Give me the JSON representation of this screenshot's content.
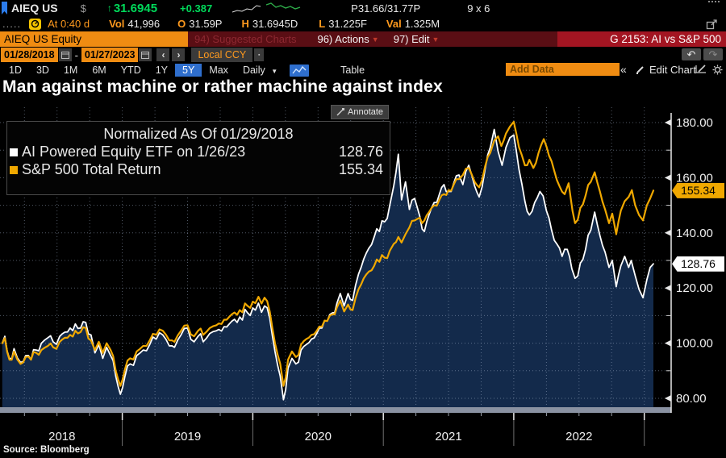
{
  "quote_bar": {
    "ticker": "AIEQ US",
    "currency": "$",
    "direction": "↑",
    "price": "31.6945",
    "change": "+0.387",
    "bid_ask": "P31.66/31.77P",
    "lot_size": "9 x 6"
  },
  "status_bar": {
    "prefix": ".....",
    "session": "At 0:40 d",
    "vol_label": "Vol",
    "vol": "41,996",
    "open_label": "O",
    "open": "31.59P",
    "high_label": "H",
    "high": "31.6945D",
    "low_label": "L",
    "low": "31.225F",
    "value_label": "Val",
    "value": "1.325M"
  },
  "menu_bar": {
    "security": "AIEQ US Equity",
    "suggested": "94) Suggested Charts",
    "actions": "96) Actions",
    "edit": "97) Edit",
    "screen_title": "G 2153: AI vs S&P 500"
  },
  "range_bar": {
    "start_date": "01/28/2018",
    "separator": "-",
    "end_date": "01/27/2023",
    "prev": "‹",
    "next": "›",
    "currency_mode": "Local CCY"
  },
  "toolbar": {
    "tabs": [
      "1D",
      "3D",
      "1M",
      "6M",
      "YTD",
      "1Y",
      "5Y",
      "Max"
    ],
    "selected_tab": "5Y",
    "period": "Daily",
    "period_arrow": "▼",
    "table_label": "Table",
    "add_data": "Add Data",
    "collapse": "«",
    "edit_chart": "Edit Chart"
  },
  "header": {
    "chart_title": "Man against machine or rather machine against index",
    "annotate": "Annotate"
  },
  "legend": {
    "title": "Normalized As Of 01/29/2018",
    "items": [
      {
        "label": "AI Powered Equity ETF on 1/26/23",
        "value": "128.76",
        "color": "#ffffff"
      },
      {
        "label": "S&P 500 Total Return",
        "value": "155.34",
        "color": "#f0a800"
      }
    ]
  },
  "badges": {
    "aieq": "128.76",
    "spx": "155.34"
  },
  "source": "Source:  Bloomberg",
  "chart_data": {
    "type": "line",
    "title": "Man against machine or rather machine against index",
    "normalized_as_of": "01/29/2018",
    "x_range": [
      2018.075,
      2023.07
    ],
    "y_range": [
      80,
      180
    ],
    "grid": {
      "h_step": 10,
      "v_step_years": 0.25
    },
    "y_major_ticks": [
      {
        "v": 80,
        "label": "80.00"
      },
      {
        "v": 100,
        "label": "100.00"
      },
      {
        "v": 120,
        "label": "120.00"
      },
      {
        "v": 140,
        "label": "140.00"
      },
      {
        "v": 160,
        "label": "160.00"
      },
      {
        "v": 180,
        "label": "180.00"
      }
    ],
    "y_minor_ticks": [
      90,
      110,
      130,
      150,
      170
    ],
    "x_year_labels": [
      "2018",
      "2019",
      "2020",
      "2021",
      "2022"
    ],
    "series": [
      {
        "name": "AI Powered Equity ETF",
        "color": "#ffffff",
        "fill": "#132a4b",
        "last": 128.76,
        "points": [
          [
            2018.08,
            100
          ],
          [
            2018.1,
            102.5
          ],
          [
            2018.135,
            94.5
          ],
          [
            2018.17,
            98
          ],
          [
            2018.22,
            93
          ],
          [
            2018.26,
            95.5
          ],
          [
            2018.3,
            94
          ],
          [
            2018.34,
            97.5
          ],
          [
            2018.38,
            100
          ],
          [
            2018.43,
            102
          ],
          [
            2018.47,
            100.5
          ],
          [
            2018.52,
            102.5
          ],
          [
            2018.56,
            104
          ],
          [
            2018.6,
            105.5
          ],
          [
            2018.64,
            107
          ],
          [
            2018.68,
            105.5
          ],
          [
            2018.72,
            107.5
          ],
          [
            2018.76,
            103
          ],
          [
            2018.79,
            96.5
          ],
          [
            2018.82,
            99.5
          ],
          [
            2018.85,
            94.5
          ],
          [
            2018.88,
            98.5
          ],
          [
            2018.91,
            95.5
          ],
          [
            2018.95,
            88
          ],
          [
            2018.985,
            81.5
          ],
          [
            2019.02,
            88
          ],
          [
            2019.06,
            92.5
          ],
          [
            2019.11,
            95.5
          ],
          [
            2019.16,
            97.5
          ],
          [
            2019.21,
            99.5
          ],
          [
            2019.26,
            101.5
          ],
          [
            2019.31,
            103
          ],
          [
            2019.36,
            99
          ],
          [
            2019.4,
            98.5
          ],
          [
            2019.45,
            103
          ],
          [
            2019.5,
            105.5
          ],
          [
            2019.55,
            100.5
          ],
          [
            2019.58,
            102.5
          ],
          [
            2019.62,
            100.5
          ],
          [
            2019.67,
            103.5
          ],
          [
            2019.72,
            104.5
          ],
          [
            2019.78,
            106
          ],
          [
            2019.84,
            108
          ],
          [
            2019.9,
            109.5
          ],
          [
            2019.96,
            111
          ],
          [
            2020.02,
            112
          ],
          [
            2020.09,
            113.5
          ],
          [
            2020.13,
            109
          ],
          [
            2020.17,
            97
          ],
          [
            2020.21,
            88
          ],
          [
            2020.235,
            79.5
          ],
          [
            2020.27,
            91
          ],
          [
            2020.3,
            94.5
          ],
          [
            2020.33,
            92.5
          ],
          [
            2020.37,
            97.5
          ],
          [
            2020.41,
            99.5
          ],
          [
            2020.45,
            101.5
          ],
          [
            2020.49,
            103.5
          ],
          [
            2020.53,
            105.5
          ],
          [
            2020.57,
            108
          ],
          [
            2020.61,
            111
          ],
          [
            2020.645,
            114.5
          ],
          [
            2020.67,
            118
          ],
          [
            2020.7,
            113.5
          ],
          [
            2020.73,
            118
          ],
          [
            2020.765,
            115.5
          ],
          [
            2020.81,
            125
          ],
          [
            2020.85,
            130.5
          ],
          [
            2020.89,
            134.5
          ],
          [
            2020.93,
            138.5
          ],
          [
            2020.97,
            140.5
          ],
          [
            2021.01,
            144
          ],
          [
            2021.05,
            150
          ],
          [
            2021.08,
            157
          ],
          [
            2021.115,
            168.5
          ],
          [
            2021.14,
            152
          ],
          [
            2021.17,
            158.5
          ],
          [
            2021.2,
            148.5
          ],
          [
            2021.24,
            152.5
          ],
          [
            2021.28,
            146
          ],
          [
            2021.315,
            140.5
          ],
          [
            2021.35,
            146.5
          ],
          [
            2021.39,
            151
          ],
          [
            2021.43,
            154
          ],
          [
            2021.465,
            157.5
          ],
          [
            2021.5,
            155
          ],
          [
            2021.54,
            158
          ],
          [
            2021.58,
            161
          ],
          [
            2021.61,
            157.5
          ],
          [
            2021.655,
            164.5
          ],
          [
            2021.7,
            157
          ],
          [
            2021.735,
            153
          ],
          [
            2021.78,
            163
          ],
          [
            2021.82,
            171
          ],
          [
            2021.85,
            177.5
          ],
          [
            2021.88,
            169.5
          ],
          [
            2021.91,
            164.5
          ],
          [
            2021.94,
            171
          ],
          [
            2021.97,
            174.5
          ],
          [
            2022.0,
            175.5
          ],
          [
            2022.04,
            163
          ],
          [
            2022.085,
            151.5
          ],
          [
            2022.12,
            146.5
          ],
          [
            2022.16,
            151
          ],
          [
            2022.2,
            155
          ],
          [
            2022.25,
            148
          ],
          [
            2022.29,
            141
          ],
          [
            2022.33,
            136
          ],
          [
            2022.37,
            131.5
          ],
          [
            2022.41,
            134
          ],
          [
            2022.445,
            127
          ],
          [
            2022.47,
            123.5
          ],
          [
            2022.51,
            129
          ],
          [
            2022.55,
            134
          ],
          [
            2022.59,
            141
          ],
          [
            2022.62,
            147.5
          ],
          [
            2022.66,
            139
          ],
          [
            2022.7,
            133
          ],
          [
            2022.73,
            127.5
          ],
          [
            2022.755,
            130
          ],
          [
            2022.785,
            120.5
          ],
          [
            2022.82,
            128
          ],
          [
            2022.85,
            131.5
          ],
          [
            2022.88,
            127.5
          ],
          [
            2022.9,
            130
          ],
          [
            2022.93,
            124.5
          ],
          [
            2022.96,
            119.5
          ],
          [
            2022.99,
            116.5
          ],
          [
            2023.02,
            123
          ],
          [
            2023.045,
            127.5
          ],
          [
            2023.07,
            128.76
          ]
        ]
      },
      {
        "name": "S&P 500 Total Return",
        "color": "#f0a800",
        "last": 155.34,
        "points": [
          [
            2018.08,
            100
          ],
          [
            2018.1,
            101.8
          ],
          [
            2018.135,
            94
          ],
          [
            2018.17,
            97
          ],
          [
            2018.22,
            92.5
          ],
          [
            2018.26,
            95
          ],
          [
            2018.3,
            94
          ],
          [
            2018.34,
            96.5
          ],
          [
            2018.38,
            97.5
          ],
          [
            2018.43,
            99
          ],
          [
            2018.47,
            98.5
          ],
          [
            2018.52,
            100.5
          ],
          [
            2018.56,
            102
          ],
          [
            2018.6,
            103
          ],
          [
            2018.64,
            104.5
          ],
          [
            2018.68,
            104
          ],
          [
            2018.72,
            105.5
          ],
          [
            2018.76,
            101
          ],
          [
            2018.79,
            97.5
          ],
          [
            2018.82,
            100.5
          ],
          [
            2018.85,
            96.5
          ],
          [
            2018.88,
            100
          ],
          [
            2018.91,
            97.5
          ],
          [
            2018.95,
            90
          ],
          [
            2018.985,
            84.5
          ],
          [
            2019.02,
            90.5
          ],
          [
            2019.06,
            94.5
          ],
          [
            2019.11,
            97
          ],
          [
            2019.16,
            99
          ],
          [
            2019.21,
            101
          ],
          [
            2019.26,
            103
          ],
          [
            2019.31,
            104.5
          ],
          [
            2019.36,
            101
          ],
          [
            2019.4,
            100.5
          ],
          [
            2019.45,
            104.5
          ],
          [
            2019.5,
            106.5
          ],
          [
            2019.55,
            102.5
          ],
          [
            2019.58,
            104.5
          ],
          [
            2019.62,
            103
          ],
          [
            2019.67,
            105.5
          ],
          [
            2019.72,
            106.5
          ],
          [
            2019.78,
            108.5
          ],
          [
            2019.84,
            110.5
          ],
          [
            2019.9,
            112
          ],
          [
            2019.96,
            113.5
          ],
          [
            2020.02,
            114.5
          ],
          [
            2020.09,
            116.5
          ],
          [
            2020.13,
            111.5
          ],
          [
            2020.17,
            100
          ],
          [
            2020.21,
            92.5
          ],
          [
            2020.235,
            84.5
          ],
          [
            2020.27,
            94
          ],
          [
            2020.3,
            97
          ],
          [
            2020.33,
            95
          ],
          [
            2020.37,
            99.5
          ],
          [
            2020.41,
            101.5
          ],
          [
            2020.45,
            103
          ],
          [
            2020.49,
            104.5
          ],
          [
            2020.53,
            106
          ],
          [
            2020.57,
            108
          ],
          [
            2020.61,
            110.5
          ],
          [
            2020.645,
            113
          ],
          [
            2020.67,
            115.5
          ],
          [
            2020.7,
            111.5
          ],
          [
            2020.73,
            114
          ],
          [
            2020.765,
            112
          ],
          [
            2020.81,
            119.5
          ],
          [
            2020.85,
            123.5
          ],
          [
            2020.89,
            126
          ],
          [
            2020.93,
            128
          ],
          [
            2020.97,
            129.5
          ],
          [
            2021.01,
            131
          ],
          [
            2021.05,
            133.5
          ],
          [
            2021.08,
            136
          ],
          [
            2021.115,
            138.5
          ],
          [
            2021.14,
            136.5
          ],
          [
            2021.17,
            139.5
          ],
          [
            2021.2,
            142
          ],
          [
            2021.24,
            144.5
          ],
          [
            2021.28,
            145.5
          ],
          [
            2021.315,
            144.5
          ],
          [
            2021.35,
            147.5
          ],
          [
            2021.39,
            150
          ],
          [
            2021.43,
            152
          ],
          [
            2021.465,
            154
          ],
          [
            2021.5,
            155.5
          ],
          [
            2021.54,
            157.5
          ],
          [
            2021.58,
            159.5
          ],
          [
            2021.61,
            161
          ],
          [
            2021.655,
            163.5
          ],
          [
            2021.7,
            158.5
          ],
          [
            2021.735,
            156.5
          ],
          [
            2021.78,
            164
          ],
          [
            2021.82,
            169
          ],
          [
            2021.85,
            173.5
          ],
          [
            2021.88,
            175
          ],
          [
            2021.905,
            171.5
          ],
          [
            2021.94,
            176
          ],
          [
            2021.97,
            178.5
          ],
          [
            2022.0,
            180.3
          ],
          [
            2022.04,
            171
          ],
          [
            2022.085,
            164.5
          ],
          [
            2022.12,
            166.5
          ],
          [
            2022.15,
            163.5
          ],
          [
            2022.19,
            169
          ],
          [
            2022.23,
            174
          ],
          [
            2022.27,
            168
          ],
          [
            2022.31,
            162.5
          ],
          [
            2022.35,
            157
          ],
          [
            2022.39,
            154
          ],
          [
            2022.42,
            158
          ],
          [
            2022.45,
            148
          ],
          [
            2022.47,
            143.5
          ],
          [
            2022.51,
            149
          ],
          [
            2022.55,
            153.5
          ],
          [
            2022.59,
            158.5
          ],
          [
            2022.62,
            162
          ],
          [
            2022.66,
            155
          ],
          [
            2022.7,
            148.5
          ],
          [
            2022.73,
            143.5
          ],
          [
            2022.755,
            147
          ],
          [
            2022.785,
            139.5
          ],
          [
            2022.82,
            148
          ],
          [
            2022.85,
            151.5
          ],
          [
            2022.88,
            153
          ],
          [
            2022.905,
            155.5
          ],
          [
            2022.93,
            150
          ],
          [
            2022.96,
            146.5
          ],
          [
            2022.99,
            144.5
          ],
          [
            2023.02,
            150
          ],
          [
            2023.045,
            152.5
          ],
          [
            2023.07,
            155.34
          ]
        ]
      }
    ]
  }
}
